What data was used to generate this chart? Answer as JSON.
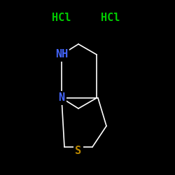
{
  "background_color": "#000000",
  "hcl_color": "#00cc00",
  "nh_color": "#4466ff",
  "n_color": "#4466ff",
  "s_color": "#bb8800",
  "bond_color": "#ffffff",
  "hcl1_text": "HCl",
  "hcl2_text": "HCl",
  "nh_text": "NH",
  "n_text": "N",
  "s_text": "S",
  "font_size_hcl": 11,
  "font_size_atom": 11,
  "line_width": 1.2
}
